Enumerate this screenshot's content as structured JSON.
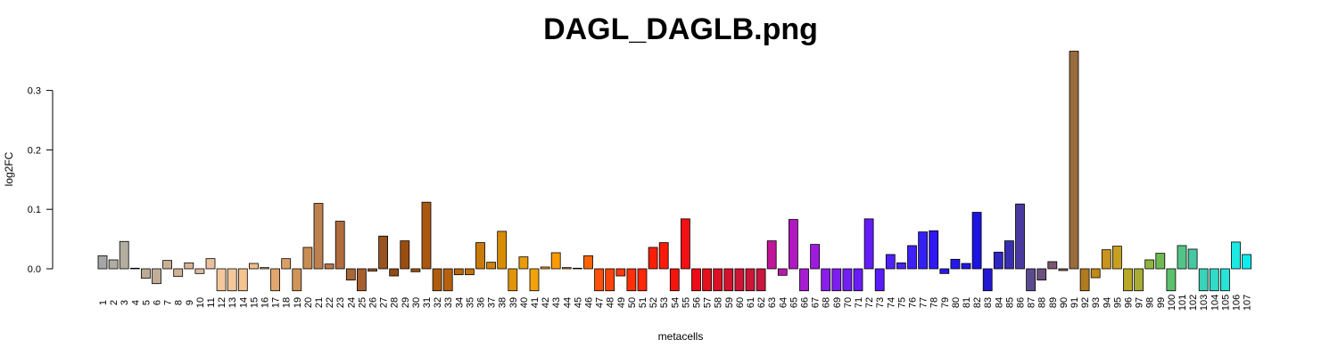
{
  "chart_data": {
    "type": "bar",
    "title": "DAGL_DAGLB.png",
    "xlabel": "metacells",
    "ylabel": "log2FC",
    "ylim": [
      -0.037,
      0.365
    ],
    "yticks": [
      0.0,
      0.1,
      0.2,
      0.3
    ],
    "ytick_labels": [
      "0.0",
      "0.1",
      "0.2",
      "0.3"
    ],
    "grid": false,
    "categories": [
      "1",
      "2",
      "3",
      "4",
      "5",
      "6",
      "7",
      "8",
      "9",
      "10",
      "11",
      "12",
      "13",
      "14",
      "15",
      "16",
      "17",
      "18",
      "19",
      "20",
      "21",
      "22",
      "23",
      "24",
      "25",
      "26",
      "27",
      "28",
      "29",
      "30",
      "31",
      "32",
      "33",
      "34",
      "35",
      "36",
      "37",
      "38",
      "39",
      "40",
      "41",
      "42",
      "43",
      "44",
      "45",
      "46",
      "47",
      "48",
      "49",
      "50",
      "51",
      "52",
      "53",
      "54",
      "55",
      "56",
      "57",
      "58",
      "59",
      "60",
      "61",
      "62",
      "63",
      "64",
      "65",
      "66",
      "67",
      "68",
      "69",
      "70",
      "71",
      "72",
      "73",
      "74",
      "75",
      "76",
      "77",
      "78",
      "79",
      "80",
      "81",
      "82",
      "83",
      "84",
      "85",
      "86",
      "87",
      "88",
      "89",
      "90",
      "91",
      "92",
      "93",
      "94",
      "95",
      "96",
      "97",
      "98",
      "99",
      "100",
      "101",
      "102",
      "103",
      "104",
      "105",
      "106",
      "107"
    ],
    "values": [
      0.022,
      0.015,
      0.046,
      0.001,
      -0.016,
      -0.025,
      0.014,
      -0.013,
      0.01,
      -0.008,
      0.017,
      -0.037,
      -0.037,
      -0.037,
      0.009,
      0.002,
      -0.037,
      0.017,
      -0.037,
      0.036,
      0.11,
      0.008,
      0.08,
      -0.019,
      -0.037,
      -0.004,
      0.055,
      -0.012,
      0.047,
      -0.005,
      0.112,
      -0.037,
      -0.037,
      -0.01,
      -0.01,
      0.044,
      0.011,
      0.063,
      -0.037,
      0.02,
      -0.037,
      0.003,
      0.027,
      0.002,
      0.001,
      0.022,
      -0.037,
      -0.037,
      -0.012,
      -0.037,
      -0.037,
      0.036,
      0.044,
      -0.037,
      0.084,
      -0.037,
      -0.037,
      -0.037,
      -0.037,
      -0.037,
      -0.037,
      -0.037,
      0.047,
      -0.011,
      0.083,
      -0.037,
      0.041,
      -0.037,
      -0.037,
      -0.037,
      -0.037,
      0.084,
      -0.037,
      0.024,
      0.01,
      0.039,
      0.062,
      0.064,
      -0.008,
      0.016,
      0.009,
      0.095,
      -0.037,
      0.028,
      0.047,
      0.109,
      -0.037,
      -0.019,
      0.012,
      -0.003,
      0.366,
      -0.037,
      -0.015,
      0.032,
      0.038,
      -0.037,
      -0.037,
      0.015,
      0.026,
      -0.037,
      0.039,
      0.033,
      -0.037,
      -0.037,
      -0.037,
      0.045,
      0.024
    ],
    "colors": [
      "#a6a6a6",
      "#b0ac9e",
      "#b3aea0",
      "#b5aa96",
      "#bbab94",
      "#c2ae98",
      "#c9b095",
      "#d2b296",
      "#d8b496",
      "#debb9d",
      "#e8c29c",
      "#f3c89b",
      "#f5c89a",
      "#f4c38f",
      "#efbd87",
      "#e8b07a",
      "#e0a66d",
      "#d99f66",
      "#d09558",
      "#c88d53",
      "#bf8050",
      "#b8784a",
      "#b06c3e",
      "#a96637",
      "#a65f2d",
      "#9f5a27",
      "#975320",
      "#8f4b17",
      "#9b4d10",
      "#a35312",
      "#aa5710",
      "#b05c0e",
      "#b6620c",
      "#bc690b",
      "#c2700a",
      "#c97a08",
      "#d18306",
      "#d88c05",
      "#e0940a",
      "#e89c0c",
      "#f2a20a",
      "#f8a808",
      "#fa9a05",
      "#fb8a05",
      "#fc7a05",
      "#fc6405",
      "#fd5008",
      "#fc440a",
      "#fc3a0a",
      "#fd3008",
      "#fd2808",
      "#f91e07",
      "#f81b0b",
      "#f5140e",
      "#f21012",
      "#ee0b18",
      "#e4101c",
      "#db1126",
      "#d4122e",
      "#d01434",
      "#cd1538",
      "#c8163c",
      "#c0169a",
      "#b818a8",
      "#b018c0",
      "#a61cd0",
      "#9e1ade",
      "#8a1eea",
      "#7c1ef0",
      "#721ff4",
      "#6a1cf6",
      "#641cf6",
      "#5a1cf8",
      "#5020f8",
      "#4824f8",
      "#3e20f8",
      "#3420f6",
      "#2e18f4",
      "#2a18f0",
      "#2418ec",
      "#1e16e8",
      "#1c14e0",
      "#2218d0",
      "#3026c0",
      "#3a2eb0",
      "#4a3aa0",
      "#5a4a8e",
      "#6e5080",
      "#7a5670",
      "#87605a",
      "#9a6b3c",
      "#b07a20",
      "#c08a18",
      "#c8941c",
      "#c8a020",
      "#b8a826",
      "#a8ac34",
      "#8eb43e",
      "#6eba52",
      "#5cc06c",
      "#52c488",
      "#46c8a2",
      "#3ad2b8",
      "#30dcc8",
      "#28e4d6",
      "#1ee8e2",
      "#10ecec"
    ]
  }
}
